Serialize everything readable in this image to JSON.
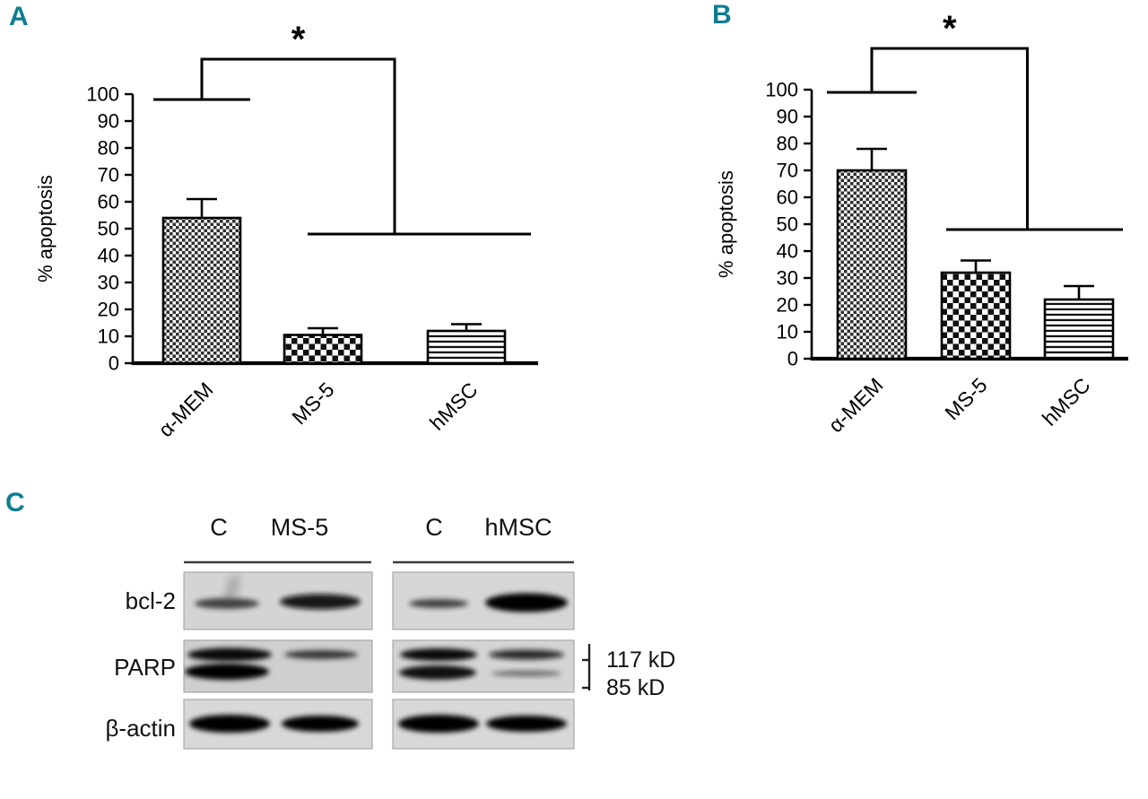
{
  "figure": {
    "accent_color": "#0e7e8f",
    "panels": {
      "a": "A",
      "b": "B",
      "c": "C"
    }
  },
  "chart_data": [
    {
      "type": "bar",
      "panel": "A",
      "title": "",
      "ylabel": "% apoptosis",
      "xlabel": "",
      "categories": [
        "α-MEM",
        "MS-5",
        "hMSC"
      ],
      "values": [
        54,
        10.5,
        12
      ],
      "errors": [
        7,
        2.5,
        2.5
      ],
      "ylim": [
        0,
        100
      ],
      "yticks": [
        0,
        10,
        20,
        30,
        40,
        50,
        60,
        70,
        80,
        90,
        100
      ],
      "bar_patterns": [
        "fine-checkerboard",
        "coarse-checkerboard",
        "horizontal-lines"
      ],
      "grid": false,
      "legend": null,
      "significance": {
        "symbol": "*",
        "comparison": "α-MEM vs MS-5 and hMSC"
      }
    },
    {
      "type": "bar",
      "panel": "B",
      "title": "",
      "ylabel": "% apoptosis",
      "xlabel": "",
      "categories": [
        "α-MEM",
        "MS-5",
        "hMSC"
      ],
      "values": [
        70,
        32,
        22
      ],
      "errors": [
        8,
        4.5,
        5
      ],
      "ylim": [
        0,
        100
      ],
      "yticks": [
        0,
        10,
        20,
        30,
        40,
        50,
        60,
        70,
        80,
        90,
        100
      ],
      "bar_patterns": [
        "fine-checkerboard",
        "coarse-checkerboard",
        "horizontal-lines"
      ],
      "grid": false,
      "legend": null,
      "significance": {
        "symbol": "*",
        "comparison": "α-MEM vs MS-5 and hMSC"
      }
    }
  ],
  "western_blot": {
    "row_labels": [
      "bcl-2",
      "PARP",
      "β-actin"
    ],
    "group1_lanes": [
      "C",
      "MS-5"
    ],
    "group2_lanes": [
      "C",
      "hMSC"
    ],
    "size_markers": [
      "117 kD",
      "85 kD"
    ]
  }
}
